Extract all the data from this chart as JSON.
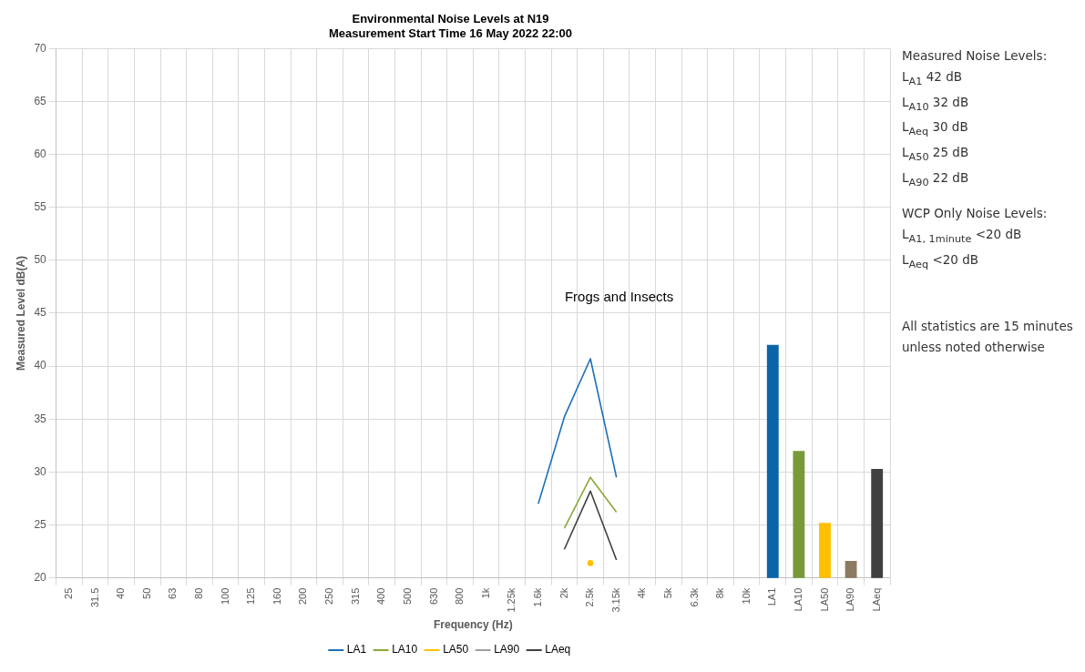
{
  "chart_data": {
    "type": "line",
    "title": "Environmental Noise Levels at N19",
    "subtitle": "Measurement Start Time 16 May 2022 22:00",
    "xlabel": "Frequency (Hz)",
    "ylabel": "Measured Level dB(A)",
    "categories": [
      "25",
      "31.5",
      "40",
      "50",
      "63",
      "80",
      "100",
      "125",
      "160",
      "200",
      "250",
      "315",
      "400",
      "500",
      "630",
      "800",
      "1k",
      "1.25k",
      "1.6k",
      "2k",
      "2.5k",
      "3.15k",
      "4k",
      "5k",
      "6.3k",
      "8k",
      "10k",
      "LA1",
      "LA10",
      "LA50",
      "LA90",
      "LAeq"
    ],
    "series": [
      {
        "name": "LA1",
        "color": "#1f6fb5",
        "values": [
          null,
          null,
          null,
          null,
          null,
          null,
          null,
          null,
          null,
          null,
          null,
          null,
          null,
          null,
          null,
          null,
          null,
          null,
          27,
          35.2,
          40.7,
          29.5,
          null,
          null,
          null,
          null,
          null,
          null,
          null,
          null,
          null,
          null
        ]
      },
      {
        "name": "LA10",
        "color": "#8aa83a",
        "values": [
          null,
          null,
          null,
          null,
          null,
          null,
          null,
          null,
          null,
          null,
          null,
          null,
          null,
          null,
          null,
          null,
          null,
          null,
          null,
          24.7,
          29.5,
          26.2,
          null,
          null,
          null,
          null,
          null,
          null,
          null,
          null,
          null,
          null
        ]
      },
      {
        "name": "LA50",
        "color": "#ffc000",
        "marker": "circle",
        "values": [
          null,
          null,
          null,
          null,
          null,
          null,
          null,
          null,
          null,
          null,
          null,
          null,
          null,
          null,
          null,
          null,
          null,
          null,
          null,
          null,
          21.4,
          null,
          null,
          null,
          null,
          null,
          null,
          null,
          null,
          null,
          null,
          null
        ]
      },
      {
        "name": "LA90",
        "color": "#a0a0a0",
        "values": [
          null,
          null,
          null,
          null,
          null,
          null,
          null,
          null,
          null,
          null,
          null,
          null,
          null,
          null,
          null,
          null,
          null,
          null,
          null,
          null,
          null,
          null,
          null,
          null,
          null,
          null,
          null,
          null,
          null,
          null,
          null,
          null
        ]
      },
      {
        "name": "LAeq",
        "color": "#404040",
        "values": [
          null,
          null,
          null,
          null,
          null,
          null,
          null,
          null,
          null,
          null,
          null,
          null,
          null,
          null,
          null,
          null,
          null,
          null,
          null,
          22.7,
          28.2,
          21.7,
          null,
          null,
          null,
          null,
          null,
          null,
          null,
          null,
          null,
          null
        ]
      },
      {
        "type": "bar",
        "colors": [
          "#0a64a8",
          "#0a64a8",
          "#0a64a8",
          "#0a64a8",
          "#0a64a8",
          "#0a64a8",
          "#0a64a8",
          "#0a64a8",
          "#0a64a8",
          "#0a64a8",
          "#0a64a8",
          "#0a64a8",
          "#0a64a8",
          "#0a64a8",
          "#0a64a8",
          "#0a64a8",
          "#0a64a8",
          "#0a64a8",
          "#0a64a8",
          "#0a64a8",
          "#0a64a8",
          "#0a64a8",
          "#0a64a8",
          "#0a64a8",
          "#0a64a8",
          "#0a64a8",
          "#0a64a8",
          "#0a64a8",
          "#7a9a3a",
          "#ffc000",
          "#8c7b62",
          "#404040"
        ],
        "values": [
          null,
          null,
          null,
          null,
          null,
          null,
          null,
          null,
          null,
          null,
          null,
          null,
          null,
          null,
          null,
          null,
          null,
          null,
          null,
          null,
          null,
          null,
          null,
          null,
          null,
          null,
          null,
          42,
          32,
          25.2,
          21.6,
          30.3
        ]
      }
    ],
    "ylim": [
      20,
      70
    ],
    "yticks": [
      20,
      25,
      30,
      35,
      40,
      45,
      50,
      55,
      60,
      65,
      70
    ],
    "grid": true,
    "legend": "bottom",
    "line_style": "solid",
    "annotations": [
      "Frogs and Insects",
      "Measured Noise Levels:",
      "L$_{A1}$ 42 dB",
      "L$_{A10}$ 32 dB",
      "L$_{Aeq}$ 30 dB",
      "L$_{A50}$ 25 dB",
      "L$_{A90}$ 22 dB",
      "WCP Only Noise Levels:",
      "L$_{A1, 1minute}$ <20 dB",
      "L$_{Aeq}$ <20 dB",
      "All statistics are 15 minutes unless noted otherwise"
    ]
  }
}
